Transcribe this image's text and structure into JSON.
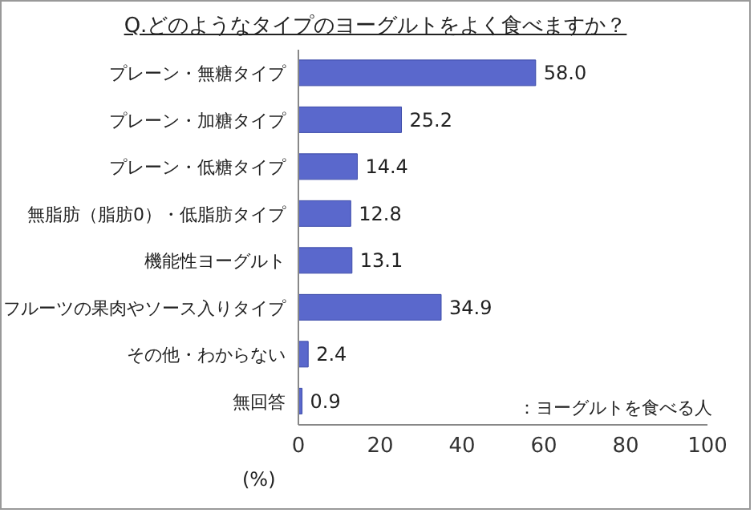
{
  "chart_data": {
    "type": "bar",
    "orientation": "horizontal",
    "title": "Q.どのようなタイプのヨーグルトをよく食べますか？",
    "xlabel": "(%)",
    "categories": [
      "プレーン・無糖タイプ",
      "プレーン・加糖タイプ",
      "プレーン・低糖タイプ",
      "無脂肪（脂肪0）・低脂肪タイプ",
      "機能性ヨーグルト",
      "フルーツの果肉やソース入りタイプ",
      "その他・わからない",
      "無回答"
    ],
    "values": [
      58.0,
      25.2,
      14.4,
      12.8,
      13.1,
      34.9,
      2.4,
      0.9
    ],
    "value_labels": [
      "58.0",
      "25.2",
      "14.4",
      "12.8",
      "13.1",
      "34.9",
      "2.4",
      "0.9"
    ],
    "color": "#5a68cc",
    "xlim": [
      0,
      100
    ],
    "xticks": [
      0,
      20,
      40,
      60,
      80,
      100
    ],
    "annotations": [
      "：ヨーグルトを食べる人"
    ]
  }
}
